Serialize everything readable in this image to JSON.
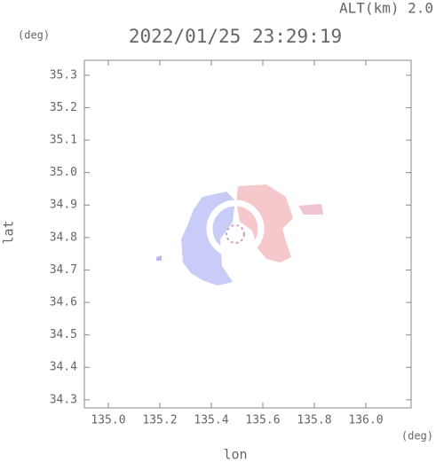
{
  "chart_data": {
    "type": "map",
    "title": "2022/01/25 23:29:19",
    "altitude_label": "ALT(km) 2.0",
    "y_unit": "(deg)",
    "x_unit": "(deg)",
    "ylabel": "lat",
    "xlabel": "lon",
    "xlim": [
      134.907,
      136.176
    ],
    "ylim": [
      34.275,
      35.346
    ],
    "xticks": [
      {
        "value": 135.0,
        "label": "135.0"
      },
      135.2,
      135.4,
      135.6,
      135.8,
      {
        "value": 136.0,
        "label": "136.0"
      }
    ],
    "yticks": [
      34.3,
      34.4,
      34.5,
      34.6,
      34.7,
      34.8,
      34.9,
      {
        "value": 35.0,
        "label": "35.0"
      },
      35.1,
      35.2,
      35.3
    ]
  }
}
